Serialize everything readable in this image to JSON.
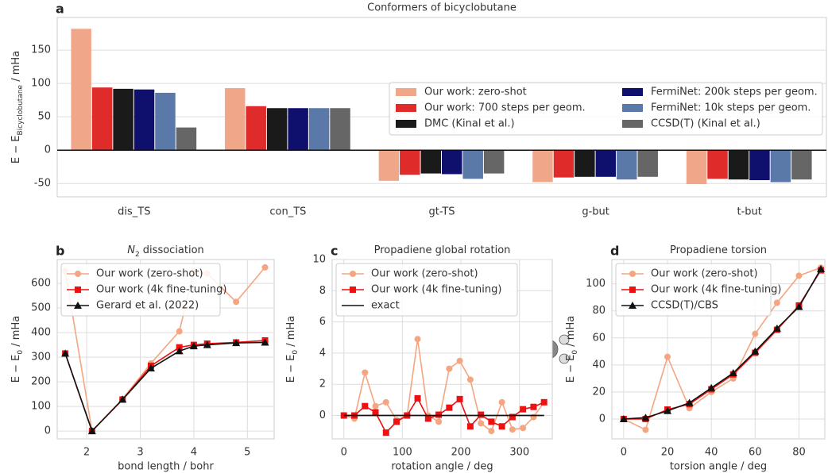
{
  "chart_data": [
    {
      "type": "bar",
      "panel": "a",
      "title": "Conformers of bicyclobutane",
      "ylabel": [
        "E − E",
        "Bicyclobutane",
        " / mHa"
      ],
      "categories": [
        "dis_TS",
        "con_TS",
        "gt-TS",
        "g-but",
        "t-but"
      ],
      "series": [
        {
          "name": "Our work: zero-shot",
          "color": "#f0a789",
          "values": [
            182,
            93,
            -46,
            -48,
            -51
          ]
        },
        {
          "name": "Our work: 700 steps per geom.",
          "color": "#e02b2b",
          "values": [
            94,
            66,
            -37,
            -41,
            -43
          ]
        },
        {
          "name": "DMC (Kinal et al.)",
          "color": "#1a1a1a",
          "values": [
            92,
            63,
            -35,
            -40,
            -44
          ]
        },
        {
          "name": "FermiNet: 200k steps per geom.",
          "color": "#0f0f6e",
          "values": [
            91,
            63,
            -36,
            -40,
            -45
          ]
        },
        {
          "name": "FermiNet: 10k steps per geom.",
          "color": "#5a78a8",
          "values": [
            86,
            63,
            -43,
            -44,
            -48
          ]
        },
        {
          "name": "CCSD(T) (Kinal et al.)",
          "color": "#666666",
          "values": [
            34,
            63,
            -35,
            -40,
            -44
          ]
        }
      ],
      "ylim": [
        -70,
        199
      ],
      "yticks": [
        -50,
        0,
        50,
        100,
        150
      ],
      "grid": true
    },
    {
      "type": "line",
      "panel": "b",
      "title": [
        "N",
        "2",
        " dissociation"
      ],
      "xlabel": "bond length / bohr",
      "ylabel": [
        "E − E",
        "0",
        " / mHa"
      ],
      "x": [
        1.6,
        2.1,
        2.67,
        3.2,
        3.73,
        4.0,
        4.25,
        4.79,
        5.33
      ],
      "series": [
        {
          "name": "Our work (zero-shot)",
          "color": "#f4a582",
          "marker": "o",
          "values": [
            650,
            0,
            130,
            275,
            405,
            650,
            640,
            525,
            665
          ]
        },
        {
          "name": "Our work (4k fine-tuning)",
          "color": "#ee1111",
          "marker": "s",
          "values": [
            315,
            0,
            128,
            265,
            340,
            350,
            355,
            360,
            368
          ]
        },
        {
          "name": "Gerard et al. (2022)",
          "color": "#111111",
          "marker": "^",
          "values": [
            315,
            0,
            128,
            255,
            325,
            345,
            350,
            358,
            360
          ]
        }
      ],
      "xlim": [
        1.45,
        5.5
      ],
      "xticks": [
        2,
        3,
        4,
        5
      ],
      "ylim": [
        -32,
        697
      ],
      "yticks": [
        0,
        100,
        200,
        300,
        400,
        500,
        600
      ],
      "grid": true
    },
    {
      "type": "line",
      "panel": "c",
      "title": [
        "Propadiene global rotation"
      ],
      "xlabel": "rotation angle / deg",
      "ylabel": [
        "E − E",
        "0",
        " / mHa"
      ],
      "x": [
        0,
        18,
        36,
        54,
        72,
        90,
        108,
        126,
        144,
        162,
        180,
        198,
        216,
        234,
        252,
        270,
        288,
        306,
        324,
        342
      ],
      "series": [
        {
          "name": "Our work (zero-shot)",
          "color": "#f4a582",
          "marker": "o",
          "values": [
            0,
            -0.2,
            2.75,
            0.6,
            0.85,
            -0.3,
            0,
            4.9,
            0,
            -0.4,
            3.0,
            3.5,
            2.3,
            -0.5,
            -1.0,
            0.85,
            -0.9,
            -0.8,
            -0.1,
            0.85
          ]
        },
        {
          "name": "Our work (4k fine-tuning)",
          "color": "#ee1111",
          "marker": "s",
          "values": [
            0,
            0,
            0.6,
            0.2,
            -1.1,
            -0.4,
            0,
            1.1,
            -0.2,
            0.05,
            0.5,
            1.05,
            -0.7,
            0.05,
            -0.4,
            -0.7,
            -0.1,
            0.4,
            0.55,
            0.85
          ]
        },
        {
          "name": "exact",
          "color": "#111111",
          "marker": "none",
          "values": [
            0,
            0,
            0,
            0,
            0,
            0,
            0,
            0,
            0,
            0,
            0,
            0,
            0,
            0,
            0,
            0,
            0,
            0,
            0,
            0
          ]
        }
      ],
      "xlim": [
        -20,
        356
      ],
      "xticks": [
        0,
        100,
        200,
        300
      ],
      "ylim": [
        -1.5,
        10
      ],
      "yticks": [
        0,
        2,
        4,
        6,
        8,
        10
      ],
      "grid": true
    },
    {
      "type": "line",
      "panel": "d",
      "title": [
        "Propadiene torsion"
      ],
      "xlabel": "torsion angle / deg",
      "ylabel": [
        "E − E",
        "0",
        " / mHa"
      ],
      "x": [
        0,
        10,
        20,
        30,
        40,
        50,
        60,
        70,
        80,
        90
      ],
      "series": [
        {
          "name": "Our work (zero-shot)",
          "color": "#f4a582",
          "marker": "o",
          "values": [
            0,
            -8,
            46,
            8,
            20,
            30,
            63,
            86,
            106,
            112
          ]
        },
        {
          "name": "Our work (4k fine-tuning)",
          "color": "#ee1111",
          "marker": "s",
          "values": [
            0,
            0,
            7,
            11,
            22,
            33,
            49,
            66,
            84,
            110
          ]
        },
        {
          "name": "CCSD(T)/CBS",
          "color": "#111111",
          "marker": "^",
          "values": [
            0,
            1,
            6,
            12,
            23,
            34,
            50,
            67,
            83,
            111
          ]
        }
      ],
      "xlim": [
        -5.4,
        91.8
      ],
      "xticks": [
        0,
        20,
        40,
        60,
        80
      ],
      "ylim": [
        -14.7,
        118
      ],
      "yticks": [
        0,
        20,
        40,
        60,
        80,
        100
      ],
      "grid": true
    }
  ]
}
